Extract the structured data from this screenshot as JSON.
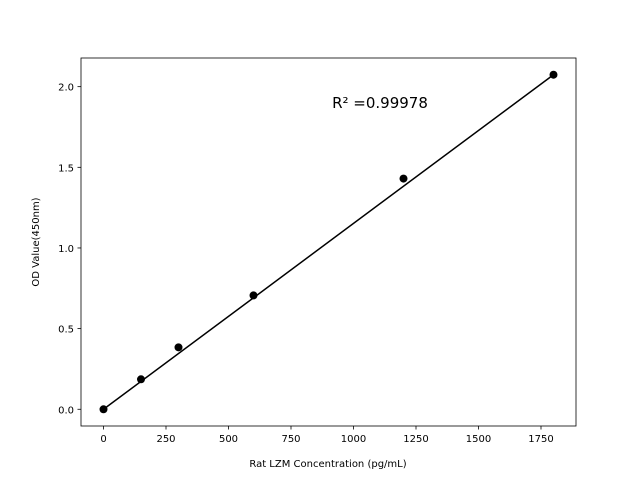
{
  "chart_data": {
    "type": "scatter",
    "annotation": "R² =0.99978",
    "x_label": "Rat LZM Concentration (pg/mL)",
    "y_label": "OD Value(450nm)",
    "series": [
      {
        "color": "#000000",
        "style": "points",
        "x": [
          0,
          150,
          300,
          600,
          1200,
          1800
        ],
        "values": [
          0,
          0.186,
          0.384,
          0.706,
          1.43,
          2.074
        ]
      },
      {
        "color": "#000000",
        "style": "line",
        "x": [
          0,
          1800
        ],
        "values": [
          0,
          2.074
        ]
      }
    ],
    "xlim": [
      -90,
      1890
    ],
    "xticks": [
      0,
      250,
      500,
      750,
      1000,
      1250,
      1500,
      1750
    ],
    "ylim": [
      -0.1037,
      2.1777
    ],
    "yticks": [
      {
        "value": 0,
        "label": "0.0"
      },
      {
        "value": 0.5,
        "label": "0.5"
      },
      {
        "value": 1,
        "label": "1.0"
      },
      {
        "value": 1.5,
        "label": "1.5"
      },
      {
        "value": 2,
        "label": "2.0"
      }
    ],
    "grid": false
  }
}
